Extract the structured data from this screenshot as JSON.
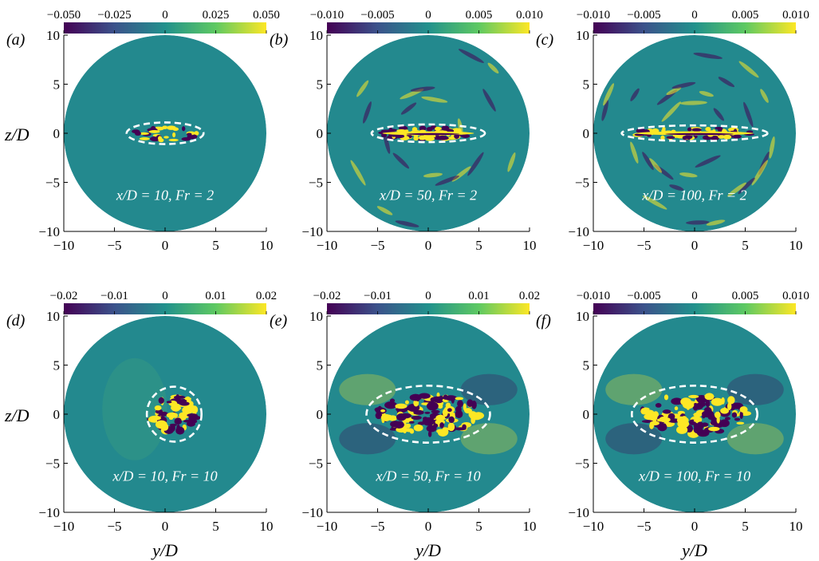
{
  "figure": {
    "colorscale": [
      "#440154",
      "#3b528b",
      "#21918c",
      "#5ec962",
      "#fde725"
    ],
    "background_field": "#23898e",
    "ellipse_color": "#ffffff",
    "shared": {
      "y_ticks": [
        "10",
        "5",
        "0",
        "−5",
        "−10"
      ],
      "x_ticks": [
        "−10",
        "−5",
        "0",
        "5",
        "10"
      ],
      "ylabel": "z/D",
      "xlabel": "y/D"
    }
  },
  "chart_data": [
    {
      "type": "heatmap",
      "panel": "(a)",
      "colorbar_ticks": [
        "−0.050",
        "−0.025",
        "0",
        "0.025",
        "0.050"
      ],
      "annotation": "x/D = 10, Fr = 2",
      "x_over_D": 10,
      "Fr": 2,
      "xlim": [
        -10,
        10
      ],
      "ylim": [
        -10,
        10
      ],
      "ellipse": {
        "cx": 0,
        "cy": 0,
        "rx": 3.8,
        "ry": 1.1
      }
    },
    {
      "type": "heatmap",
      "panel": "(b)",
      "colorbar_ticks": [
        "−0.010",
        "−0.005",
        "0",
        "0.005",
        "0.010"
      ],
      "annotation": "x/D = 50, Fr = 2",
      "x_over_D": 50,
      "Fr": 2,
      "xlim": [
        -10,
        10
      ],
      "ylim": [
        -10,
        10
      ],
      "ellipse": {
        "cx": 0,
        "cy": 0,
        "rx": 5.6,
        "ry": 0.9
      }
    },
    {
      "type": "heatmap",
      "panel": "(c)",
      "colorbar_ticks": [
        "−0.010",
        "−0.005",
        "0",
        "0.005",
        "0.010"
      ],
      "annotation": "x/D = 100, Fr = 2",
      "x_over_D": 100,
      "Fr": 2,
      "xlim": [
        -10,
        10
      ],
      "ylim": [
        -10,
        10
      ],
      "ellipse": {
        "cx": 0,
        "cy": 0,
        "rx": 7.2,
        "ry": 0.8
      }
    },
    {
      "type": "heatmap",
      "panel": "(d)",
      "colorbar_ticks": [
        "−0.02",
        "−0.01",
        "0",
        "0.01",
        "0.02"
      ],
      "annotation": "x/D = 10, Fr = 10",
      "x_over_D": 10,
      "Fr": 10,
      "xlim": [
        -10,
        10
      ],
      "ylim": [
        -10,
        10
      ],
      "ellipse": {
        "cx": 0.9,
        "cy": 0,
        "rx": 2.7,
        "ry": 2.8
      }
    },
    {
      "type": "heatmap",
      "panel": "(e)",
      "colorbar_ticks": [
        "−0.02",
        "−0.01",
        "0",
        "0.01",
        "0.02"
      ],
      "annotation": "x/D = 50, Fr = 10",
      "x_over_D": 50,
      "Fr": 10,
      "xlim": [
        -10,
        10
      ],
      "ylim": [
        -10,
        10
      ],
      "ellipse": {
        "cx": 0,
        "cy": 0,
        "rx": 6.1,
        "ry": 2.9
      }
    },
    {
      "type": "heatmap",
      "panel": "(f)",
      "colorbar_ticks": [
        "−0.010",
        "−0.005",
        "0",
        "0.005",
        "0.010"
      ],
      "annotation": "x/D = 100, Fr = 10",
      "x_over_D": 100,
      "Fr": 10,
      "xlim": [
        -10,
        10
      ],
      "ylim": [
        -10,
        10
      ],
      "ellipse": {
        "cx": 0,
        "cy": 0,
        "rx": 6.2,
        "ry": 2.9
      }
    }
  ]
}
